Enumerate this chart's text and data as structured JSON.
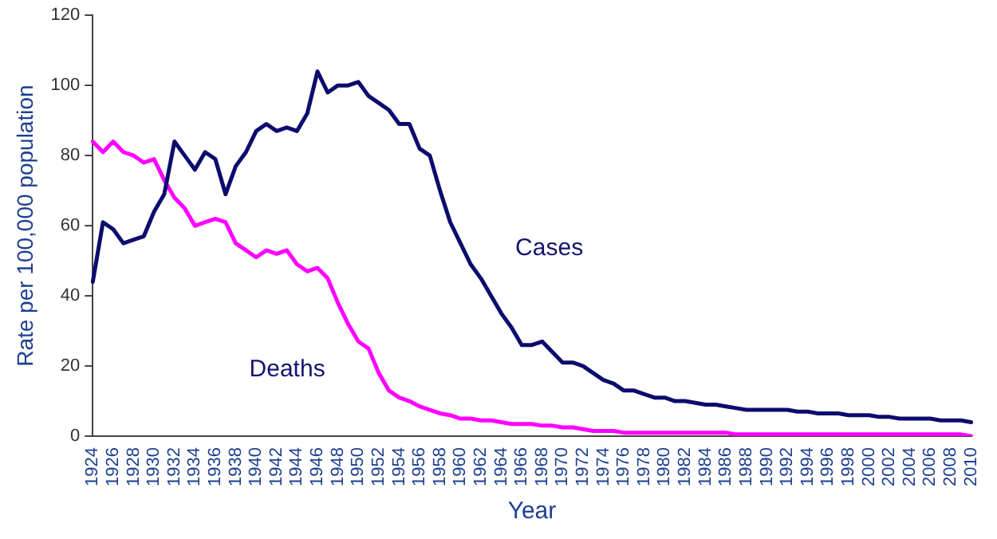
{
  "chart_data": {
    "type": "line",
    "xlabel": "Year",
    "ylabel": "Rate per 100,000 population",
    "categories": [
      "1924",
      null,
      "1926",
      null,
      "1928",
      null,
      "1930",
      null,
      "1932",
      null,
      "1934",
      null,
      "1936",
      null,
      "1938",
      null,
      "1940",
      null,
      "1942",
      null,
      "1944",
      null,
      "1946",
      null,
      "1948",
      null,
      "1950",
      null,
      "1952",
      null,
      "1954",
      null,
      "1956",
      null,
      "1958",
      null,
      "1960",
      null,
      "1962",
      null,
      "1964",
      null,
      "1966",
      null,
      "1968",
      null,
      "1970",
      null,
      "1972",
      null,
      "1974",
      null,
      "1976",
      null,
      "1978",
      null,
      "1980",
      null,
      "1982",
      null,
      "1984",
      null,
      "1986",
      null,
      "1988",
      null,
      "1990",
      null,
      "1992",
      null,
      "1994",
      null,
      "1996",
      null,
      "1998",
      null,
      "2000",
      null,
      "2002",
      null,
      "2004",
      null,
      "2006",
      null,
      "2008",
      null,
      "2010"
    ],
    "series": [
      {
        "name": "Cases",
        "color": "#0c0c6e",
        "values": [
          44,
          61,
          59,
          55,
          56,
          57,
          64,
          69,
          84,
          80,
          76,
          81,
          79,
          69,
          77,
          81,
          87,
          89,
          87,
          88,
          87,
          92,
          104,
          98,
          100,
          100,
          101,
          97,
          95,
          93,
          89,
          89,
          82,
          80,
          70,
          61,
          55,
          49,
          45,
          40,
          35,
          31,
          26,
          26,
          27,
          24,
          21,
          21,
          20,
          18,
          16,
          15,
          13,
          13,
          12,
          11,
          11,
          10,
          10,
          9.5,
          9,
          9,
          8.5,
          8,
          7.5,
          7.5,
          7.5,
          7.5,
          7.5,
          7,
          7,
          6.5,
          6.5,
          6.5,
          6,
          6,
          6,
          5.5,
          5.5,
          5,
          5,
          5,
          5,
          4.5,
          4.5,
          4.5,
          4
        ]
      },
      {
        "name": "Deaths",
        "color": "#ff00ff",
        "values": [
          84,
          81,
          84,
          81,
          80,
          78,
          79,
          73,
          68,
          65,
          60,
          61,
          62,
          61,
          55,
          53,
          51,
          53,
          52,
          53,
          49,
          47,
          48,
          45,
          38,
          32,
          27,
          25,
          18,
          13,
          11,
          10,
          8.5,
          7.5,
          6.5,
          6,
          5,
          5,
          4.5,
          4.5,
          4,
          3.5,
          3.5,
          3.5,
          3,
          3,
          2.5,
          2.5,
          2,
          1.5,
          1.5,
          1.5,
          1,
          1,
          1,
          1,
          1,
          1,
          1,
          1,
          1,
          1,
          1,
          0.5,
          0.5,
          0.5,
          0.5,
          0.5,
          0.5,
          0.5,
          0.5,
          0.5,
          0.5,
          0.5,
          0.5,
          0.5,
          0.5,
          0.5,
          0.5,
          0.5,
          0.5,
          0.5,
          0.5,
          0.5,
          0.5,
          0.5,
          0
        ]
      }
    ],
    "ylim": [
      0,
      120
    ],
    "yticks": [
      0,
      20,
      40,
      60,
      80,
      100,
      120
    ],
    "grid": false,
    "legend": false,
    "marker": "none",
    "line_style": "solid"
  }
}
